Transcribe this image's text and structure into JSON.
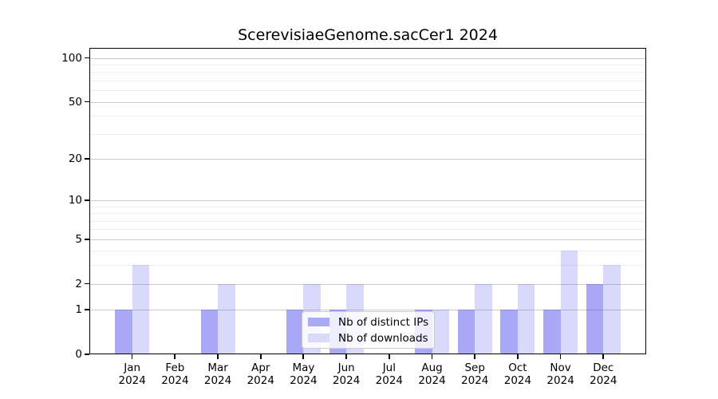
{
  "window": {
    "background": "#ffffff"
  },
  "chart_data": {
    "type": "bar",
    "title": "ScerevisiaeGenome.sacCer1 2024",
    "categories": [
      "Jan 2024",
      "Feb 2024",
      "Mar 2024",
      "Apr 2024",
      "May 2024",
      "Jun 2024",
      "Jul 2024",
      "Aug 2024",
      "Sep 2024",
      "Oct 2024",
      "Nov 2024",
      "Dec 2024"
    ],
    "series": [
      {
        "name": "Nb of distinct IPs",
        "values": [
          1,
          0,
          1,
          0,
          1,
          1,
          0,
          1,
          1,
          1,
          1,
          2
        ],
        "fill": "rgba(82,82,238,0.5)",
        "swatch": "#a9a9f6"
      },
      {
        "name": "Nb of downloads",
        "values": [
          3,
          0,
          2,
          0,
          2,
          2,
          0,
          1,
          2,
          2,
          4,
          3
        ],
        "fill": "rgba(82,82,238,0.22)",
        "swatch": "#d9d9f8"
      }
    ],
    "xlabel": "",
    "ylabel": "",
    "y_scale": "log1p",
    "y_major_ticks": [
      0,
      1,
      2,
      5,
      10,
      20,
      50,
      100
    ],
    "y_minor_gridlines": [
      3,
      4,
      6,
      7,
      8,
      9,
      30,
      40,
      60,
      70,
      80,
      90
    ],
    "ylim": [
      0,
      117
    ],
    "grid": "on",
    "legend_position": "lower center",
    "colors": {
      "grid_major": "#c9c9c9",
      "grid_minor": "#ededed",
      "spine": "#000000",
      "legend_border": "#cccccc"
    }
  }
}
